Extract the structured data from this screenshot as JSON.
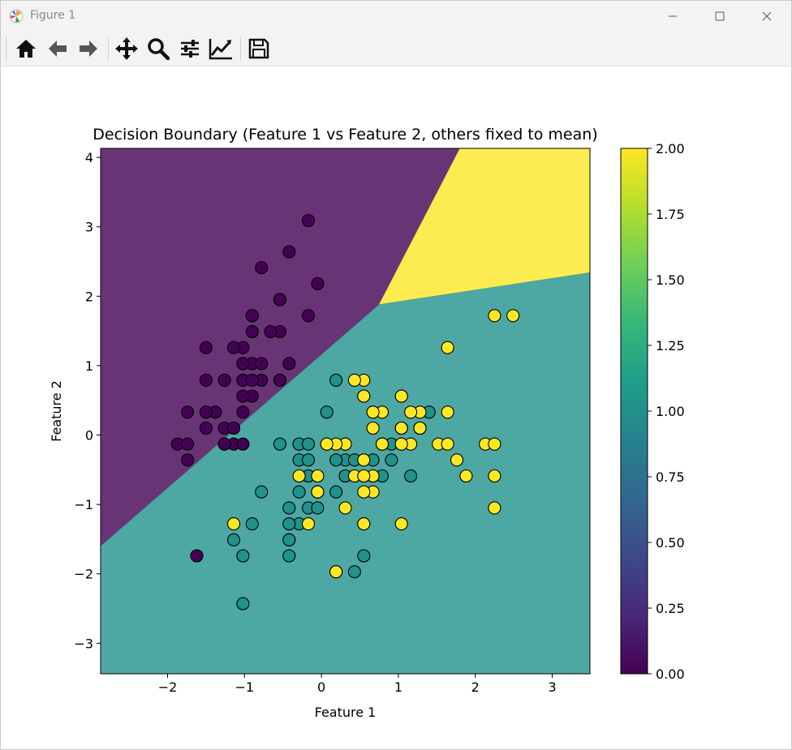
{
  "window": {
    "title": "Figure 1"
  },
  "toolbar": {
    "buttons": [
      {
        "name": "home",
        "icon": "home-icon"
      },
      {
        "name": "back",
        "icon": "arrow-left-icon"
      },
      {
        "name": "forward",
        "icon": "arrow-right-icon"
      },
      {
        "name": "pan",
        "icon": "move-icon"
      },
      {
        "name": "zoom",
        "icon": "magnifier-icon"
      },
      {
        "name": "configure-subplots",
        "icon": "sliders-icon"
      },
      {
        "name": "edit-axis",
        "icon": "line-chart-icon"
      },
      {
        "name": "save",
        "icon": "floppy-disk-icon"
      }
    ]
  },
  "chart_data": {
    "type": "scatter",
    "title": "Decision Boundary (Feature 1 vs Feature 2, others fixed to mean)",
    "xlabel": "Feature 1",
    "ylabel": "Feature 2",
    "xlim": [
      -2.87,
      3.49
    ],
    "ylim": [
      -3.44,
      4.13
    ],
    "xticks": [
      -2,
      -1,
      0,
      1,
      2,
      3
    ],
    "yticks": [
      -3,
      -2,
      -1,
      0,
      1,
      2,
      3,
      4
    ],
    "xtick_labels": [
      "−2",
      "−1",
      "0",
      "1",
      "2",
      "3"
    ],
    "ytick_labels": [
      "−3",
      "−2",
      "−1",
      "0",
      "1",
      "2",
      "3",
      "4"
    ],
    "colormap": "viridis",
    "colors": {
      "class0": "#440154",
      "class1": "#21918c",
      "class2": "#fde725"
    },
    "regions": [
      {
        "class": 0,
        "color": "#440154",
        "alpha": 0.8,
        "polygon": [
          [
            -2.87,
            4.13
          ],
          [
            1.8,
            4.13
          ],
          [
            0.75,
            1.88
          ],
          [
            -2.87,
            -1.6
          ]
        ]
      },
      {
        "class": 2,
        "color": "#fde725",
        "alpha": 0.8,
        "polygon": [
          [
            1.8,
            4.13
          ],
          [
            3.49,
            4.13
          ],
          [
            3.49,
            2.34
          ],
          [
            0.75,
            1.88
          ]
        ]
      },
      {
        "class": 1,
        "color": "#21918c",
        "alpha": 0.8,
        "polygon": [
          [
            -2.87,
            -1.6
          ],
          [
            0.75,
            1.88
          ],
          [
            3.49,
            2.34
          ],
          [
            3.49,
            -3.44
          ],
          [
            -2.87,
            -3.44
          ]
        ]
      }
    ],
    "series": [
      {
        "class": 0,
        "points": [
          [
            -0.9,
            1.03
          ],
          [
            -1.14,
            -0.13
          ],
          [
            -1.38,
            0.33
          ],
          [
            -1.5,
            0.1
          ],
          [
            -1.02,
            1.26
          ],
          [
            -0.54,
            1.95
          ],
          [
            -1.5,
            0.79
          ],
          [
            -1.02,
            0.79
          ],
          [
            -1.74,
            -0.36
          ],
          [
            -1.14,
            0.1
          ],
          [
            -0.54,
            1.49
          ],
          [
            -1.26,
            0.79
          ],
          [
            -1.26,
            -0.13
          ],
          [
            -1.87,
            -0.13
          ],
          [
            -0.05,
            2.18
          ],
          [
            -0.17,
            3.09
          ],
          [
            -0.54,
            1.95
          ],
          [
            -0.9,
            1.03
          ],
          [
            -0.17,
            1.72
          ],
          [
            -0.9,
            1.72
          ],
          [
            -0.54,
            0.79
          ],
          [
            -0.9,
            1.49
          ],
          [
            -1.5,
            1.26
          ],
          [
            -0.9,
            0.56
          ],
          [
            -1.26,
            0.79
          ],
          [
            -1.02,
            -0.13
          ],
          [
            -1.02,
            0.79
          ],
          [
            -0.78,
            1.03
          ],
          [
            -0.78,
            0.79
          ],
          [
            -1.38,
            0.33
          ],
          [
            -1.26,
            0.1
          ],
          [
            -0.54,
            0.79
          ],
          [
            -0.78,
            2.41
          ],
          [
            -0.42,
            2.64
          ],
          [
            -1.14,
            0.1
          ],
          [
            -1.02,
            0.33
          ],
          [
            -0.42,
            1.03
          ],
          [
            -1.14,
            1.26
          ],
          [
            -1.74,
            -0.13
          ],
          [
            -0.9,
            0.79
          ],
          [
            -1.02,
            1.03
          ],
          [
            -1.62,
            -1.74
          ],
          [
            -1.74,
            0.33
          ],
          [
            -1.02,
            1.03
          ],
          [
            -0.9,
            1.72
          ],
          [
            -1.26,
            -0.13
          ],
          [
            -0.9,
            1.72
          ],
          [
            -1.5,
            0.33
          ],
          [
            -0.66,
            1.49
          ],
          [
            -1.02,
            0.56
          ]
        ]
      },
      {
        "class": 1,
        "points": [
          [
            1.4,
            0.33
          ],
          [
            0.67,
            0.33
          ],
          [
            1.28,
            0.1
          ],
          [
            -0.42,
            -1.74
          ],
          [
            0.79,
            -0.59
          ],
          [
            -0.17,
            -0.59
          ],
          [
            0.55,
            0.56
          ],
          [
            -1.14,
            -1.51
          ],
          [
            0.91,
            -0.36
          ],
          [
            -0.78,
            -0.82
          ],
          [
            -1.02,
            -2.43
          ],
          [
            0.07,
            -0.13
          ],
          [
            0.19,
            -1.97
          ],
          [
            0.31,
            -0.36
          ],
          [
            -0.29,
            -0.36
          ],
          [
            1.04,
            0.1
          ],
          [
            -0.29,
            -0.13
          ],
          [
            -0.05,
            -0.82
          ],
          [
            0.43,
            -1.97
          ],
          [
            -0.29,
            -1.28
          ],
          [
            0.07,
            0.33
          ],
          [
            0.31,
            -0.59
          ],
          [
            0.55,
            -1.28
          ],
          [
            0.31,
            -0.59
          ],
          [
            0.67,
            -0.36
          ],
          [
            0.91,
            -0.13
          ],
          [
            1.16,
            -0.59
          ],
          [
            1.04,
            -0.13
          ],
          [
            0.19,
            -0.36
          ],
          [
            -0.17,
            -1.05
          ],
          [
            -0.42,
            -1.51
          ],
          [
            -0.42,
            -1.51
          ],
          [
            -0.05,
            -0.82
          ],
          [
            0.19,
            -0.82
          ],
          [
            -0.54,
            -0.13
          ],
          [
            0.19,
            0.79
          ],
          [
            1.04,
            0.1
          ],
          [
            0.55,
            -1.74
          ],
          [
            -0.29,
            -0.13
          ],
          [
            -0.42,
            -1.28
          ],
          [
            -0.42,
            -1.05
          ],
          [
            0.31,
            -0.13
          ],
          [
            -0.05,
            -1.05
          ],
          [
            -1.02,
            -1.74
          ],
          [
            -0.29,
            -0.82
          ],
          [
            -0.17,
            -0.13
          ],
          [
            -0.17,
            -0.36
          ],
          [
            0.43,
            -0.36
          ],
          [
            -0.9,
            -1.28
          ],
          [
            -0.17,
            -0.59
          ]
        ]
      },
      {
        "class": 2,
        "points": [
          [
            0.55,
            0.56
          ],
          [
            -0.05,
            -0.82
          ],
          [
            1.52,
            -0.13
          ],
          [
            0.55,
            -0.36
          ],
          [
            0.79,
            -0.13
          ],
          [
            2.13,
            -0.13
          ],
          [
            -1.14,
            -1.28
          ],
          [
            1.76,
            -0.36
          ],
          [
            1.04,
            -1.28
          ],
          [
            1.64,
            1.26
          ],
          [
            0.79,
            0.33
          ],
          [
            0.67,
            -0.82
          ],
          [
            1.16,
            -0.13
          ],
          [
            -0.17,
            -1.28
          ],
          [
            -0.05,
            -0.59
          ],
          [
            0.67,
            0.33
          ],
          [
            0.79,
            -0.13
          ],
          [
            2.25,
            1.72
          ],
          [
            2.25,
            -1.05
          ],
          [
            0.19,
            -1.97
          ],
          [
            1.28,
            0.33
          ],
          [
            -0.29,
            -0.59
          ],
          [
            2.25,
            -0.59
          ],
          [
            0.55,
            -0.82
          ],
          [
            1.04,
            0.56
          ],
          [
            1.64,
            0.33
          ],
          [
            0.43,
            -0.59
          ],
          [
            0.31,
            -0.13
          ],
          [
            0.67,
            -0.59
          ],
          [
            1.64,
            -0.13
          ],
          [
            1.88,
            -0.59
          ],
          [
            2.49,
            1.72
          ],
          [
            0.67,
            -0.59
          ],
          [
            0.55,
            -0.59
          ],
          [
            0.31,
            -1.05
          ],
          [
            2.25,
            -0.13
          ],
          [
            0.55,
            0.79
          ],
          [
            0.67,
            0.1
          ],
          [
            0.19,
            -0.13
          ],
          [
            1.28,
            0.1
          ],
          [
            1.04,
            0.1
          ],
          [
            1.28,
            0.1
          ],
          [
            -0.05,
            -0.82
          ],
          [
            1.16,
            0.33
          ],
          [
            1.04,
            0.56
          ],
          [
            1.04,
            -0.13
          ],
          [
            0.55,
            -1.28
          ],
          [
            0.79,
            -0.13
          ],
          [
            0.43,
            0.79
          ],
          [
            0.07,
            -0.13
          ]
        ]
      }
    ],
    "colorbar": {
      "range": [
        0,
        2
      ],
      "ticks": [
        0,
        0.25,
        0.5,
        0.75,
        1,
        1.25,
        1.5,
        1.75,
        2
      ],
      "tick_labels": [
        "0.00",
        "0.25",
        "0.50",
        "0.75",
        "1.00",
        "1.25",
        "1.50",
        "1.75",
        "2.00"
      ]
    }
  }
}
